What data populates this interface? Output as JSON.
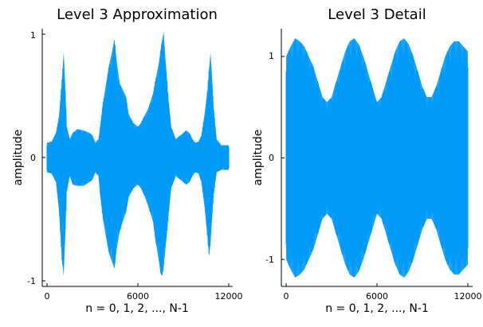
{
  "chart_data": [
    {
      "type": "line",
      "title": "Level 3 Approximation",
      "xlabel": "n = 0, 1, 2, ..., N-1",
      "ylabel": "amplitude",
      "xlim": [
        0,
        12000
      ],
      "ylim": [
        -1,
        1
      ],
      "xticks": [
        0,
        6000,
        12000
      ],
      "xtick_labels": [
        "0",
        "6000",
        "12000"
      ],
      "yticks": [
        -1,
        0,
        1
      ],
      "ytick_labels": [
        "-1",
        "0",
        "1"
      ],
      "grid": false,
      "legend": false,
      "series": [
        {
          "color": "#009AF9",
          "envelope": {
            "x": [
              0,
              300,
              600,
              800,
              1000,
              1100,
              1200,
              1300,
              1500,
              1700,
              2000,
              2400,
              2800,
              3000,
              3200,
              3400,
              3500,
              3700,
              3900,
              4100,
              4300,
              4450,
              4600,
              4800,
              5000,
              5200,
              5400,
              5700,
              6000,
              6200,
              6400,
              6700,
              7000,
              7200,
              7400,
              7500,
              7600,
              7700,
              7850,
              8000,
              8200,
              8500,
              8800,
              9000,
              9200,
              9400,
              9600,
              9800,
              10000,
              10200,
              10400,
              10600,
              10700,
              10800,
              10900,
              11000,
              11200,
              11500,
              11800,
              12000
            ],
            "upper": [
              0.12,
              0.13,
              0.2,
              0.35,
              0.65,
              0.86,
              0.6,
              0.25,
              0.15,
              0.2,
              0.23,
              0.22,
              0.2,
              0.18,
              0.12,
              0.15,
              0.25,
              0.45,
              0.6,
              0.75,
              0.86,
              0.96,
              0.78,
              0.6,
              0.55,
              0.5,
              0.35,
              0.28,
              0.25,
              0.28,
              0.33,
              0.4,
              0.52,
              0.65,
              0.78,
              0.87,
              0.95,
              1.02,
              0.75,
              0.5,
              0.25,
              0.15,
              0.18,
              0.2,
              0.22,
              0.2,
              0.15,
              0.12,
              0.13,
              0.18,
              0.35,
              0.55,
              0.72,
              0.85,
              0.65,
              0.4,
              0.15,
              0.1,
              0.1,
              0.1
            ],
            "lower": [
              -0.12,
              -0.13,
              -0.2,
              -0.45,
              -0.85,
              -0.96,
              -0.65,
              -0.28,
              -0.15,
              -0.22,
              -0.23,
              -0.23,
              -0.2,
              -0.18,
              -0.12,
              -0.15,
              -0.3,
              -0.5,
              -0.65,
              -0.78,
              -0.85,
              -0.9,
              -0.74,
              -0.6,
              -0.52,
              -0.45,
              -0.32,
              -0.25,
              -0.22,
              -0.25,
              -0.3,
              -0.4,
              -0.52,
              -0.7,
              -0.85,
              -0.94,
              -0.96,
              -0.9,
              -0.7,
              -0.5,
              -0.25,
              -0.15,
              -0.18,
              -0.2,
              -0.22,
              -0.2,
              -0.15,
              -0.12,
              -0.13,
              -0.2,
              -0.4,
              -0.65,
              -0.8,
              -0.7,
              -0.5,
              -0.3,
              -0.12,
              -0.1,
              -0.1,
              -0.1
            ]
          }
        }
      ]
    },
    {
      "type": "line",
      "title": "Level 3 Detail",
      "xlabel": "n = 0, 1, 2, ..., N-1",
      "ylabel": "amplitude",
      "xlim": [
        0,
        12000
      ],
      "ylim": [
        -1,
        1
      ],
      "xticks": [
        0,
        6000,
        12000
      ],
      "xtick_labels": [
        "0",
        "6000",
        "12000"
      ],
      "yticks": [
        -1,
        0,
        1
      ],
      "ytick_labels": [
        "-1",
        "0",
        "1"
      ],
      "grid": false,
      "legend": false,
      "series": [
        {
          "color": "#009AF9",
          "envelope": {
            "x": [
              0,
              300,
              600,
              900,
              1200,
              1500,
              1800,
              2100,
              2400,
              2700,
              3000,
              3300,
              3600,
              3900,
              4200,
              4500,
              4800,
              5100,
              5400,
              5700,
              6000,
              6300,
              6600,
              6900,
              7200,
              7500,
              7800,
              8100,
              8400,
              8700,
              9000,
              9300,
              9600,
              9900,
              10200,
              10500,
              10800,
              11100,
              11400,
              11700,
              12000
            ],
            "upper": [
              1.0,
              1.1,
              1.18,
              1.15,
              1.1,
              1.0,
              0.9,
              0.75,
              0.6,
              0.55,
              0.6,
              0.75,
              0.9,
              1.05,
              1.15,
              1.18,
              1.12,
              1.0,
              0.85,
              0.7,
              0.55,
              0.6,
              0.75,
              0.9,
              1.05,
              1.15,
              1.18,
              1.12,
              1.0,
              0.85,
              0.7,
              0.6,
              0.6,
              0.7,
              0.85,
              1.0,
              1.1,
              1.15,
              1.15,
              1.1,
              1.05
            ],
            "lower": [
              -1.0,
              -1.1,
              -1.18,
              -1.15,
              -1.1,
              -1.0,
              -0.9,
              -0.75,
              -0.6,
              -0.55,
              -0.6,
              -0.75,
              -0.9,
              -1.05,
              -1.15,
              -1.18,
              -1.12,
              -1.0,
              -0.85,
              -0.7,
              -0.55,
              -0.6,
              -0.75,
              -0.9,
              -1.05,
              -1.15,
              -1.18,
              -1.12,
              -1.0,
              -0.85,
              -0.7,
              -0.6,
              -0.6,
              -0.7,
              -0.85,
              -1.0,
              -1.1,
              -1.15,
              -1.15,
              -1.1,
              -1.05
            ]
          }
        }
      ]
    }
  ]
}
